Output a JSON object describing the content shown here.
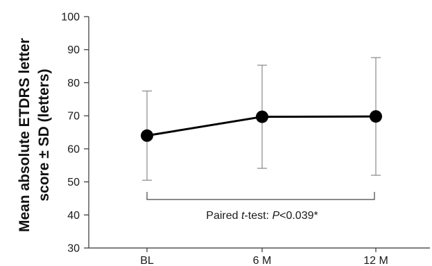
{
  "chart_data": {
    "type": "line",
    "ylabel_line1": "Mean absolute ETDRS letter",
    "ylabel_line2": "score ± SD (letters)",
    "categories": [
      "BL",
      "6 M",
      "12 M"
    ],
    "ylim": [
      30,
      100
    ],
    "yticks": [
      "30",
      "40",
      "50",
      "60",
      "70",
      "80",
      "90",
      "100"
    ],
    "series": [
      {
        "values": [
          64.0,
          69.7,
          69.8
        ],
        "sd": [
          13.5,
          15.6,
          17.8
        ]
      }
    ],
    "annotation": {
      "prefix": "Paired ",
      "italic_t": "t",
      "middle": "-test: ",
      "italic_p": "P",
      "suffix": "<0.039*"
    },
    "grid": false,
    "line_color": "#000000",
    "errorbar_color": "#888888"
  }
}
